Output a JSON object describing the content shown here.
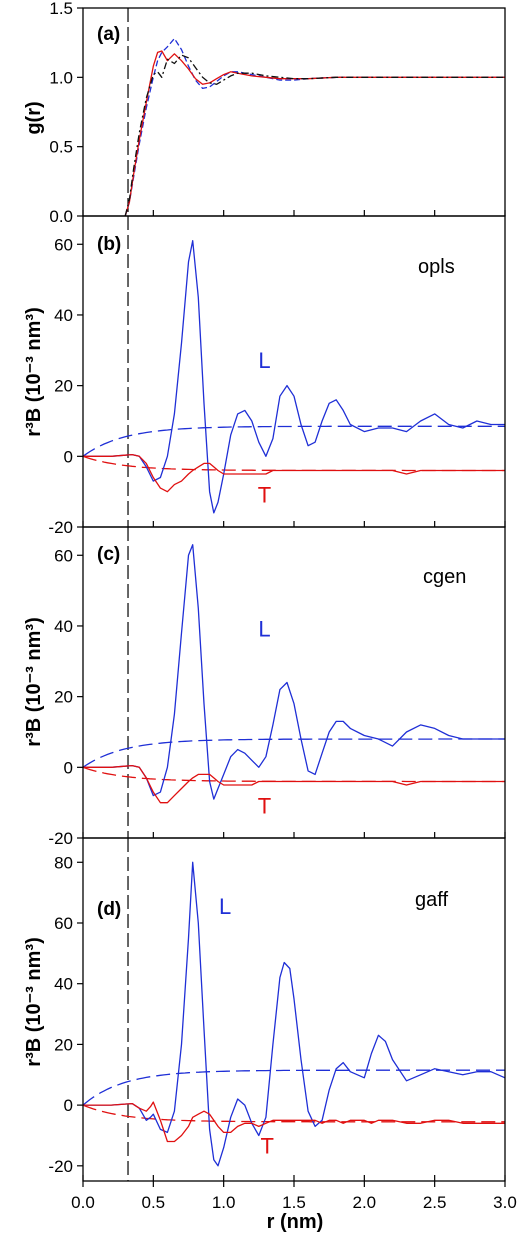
{
  "chart_data": [
    {
      "type": "line",
      "panel_label": "(a)",
      "model_label": "",
      "ylabel": "g(r)",
      "ylim": [
        0,
        1.5
      ],
      "yticks": [
        0.0,
        0.5,
        1.0,
        1.5
      ],
      "xlim": [
        0,
        3.0
      ],
      "x": [
        0.3,
        0.33,
        0.36,
        0.4,
        0.45,
        0.5,
        0.53,
        0.56,
        0.6,
        0.65,
        0.7,
        0.75,
        0.8,
        0.85,
        0.9,
        0.95,
        1.0,
        1.05,
        1.1,
        1.2,
        1.3,
        1.4,
        1.5,
        1.6,
        1.8,
        2.0,
        2.5,
        3.0
      ],
      "series": [
        {
          "color": "#1f2fd6",
          "dash": "6 3",
          "values": [
            0,
            0.1,
            0.28,
            0.52,
            0.78,
            1.0,
            1.12,
            1.18,
            1.22,
            1.28,
            1.2,
            1.08,
            0.98,
            0.92,
            0.93,
            0.97,
            1.01,
            1.04,
            1.04,
            1.02,
            1.0,
            0.98,
            0.98,
            0.99,
            1.0,
            1.0,
            1.0,
            1.0
          ]
        },
        {
          "color": "#e01010",
          "dash": "",
          "values": [
            0,
            0.1,
            0.3,
            0.55,
            0.82,
            1.08,
            1.18,
            1.19,
            1.12,
            1.17,
            1.12,
            1.06,
            0.99,
            0.95,
            0.96,
            0.99,
            1.02,
            1.04,
            1.03,
            1.01,
            1.0,
            0.99,
            0.99,
            0.99,
            1.0,
            1.0,
            1.0,
            1.0
          ]
        },
        {
          "color": "#111111",
          "dash": "7 3 2 3",
          "values": [
            0,
            0.12,
            0.34,
            0.6,
            0.85,
            1.02,
            1.04,
            1.0,
            1.13,
            1.1,
            1.16,
            1.14,
            1.07,
            1.0,
            0.96,
            0.95,
            0.98,
            1.01,
            1.03,
            1.03,
            1.01,
            1.0,
            0.99,
            0.99,
            1.0,
            1.0,
            1.0,
            1.0
          ]
        }
      ],
      "vline_x": 0.32
    },
    {
      "type": "line",
      "panel_label": "(b)",
      "model_label": "opls",
      "ylabel": "r³B (10⁻³ nm³)",
      "ylim": [
        -20,
        68
      ],
      "yticks": [
        -20,
        0,
        20,
        40,
        60
      ],
      "xlim": [
        0,
        3.0
      ],
      "series_labels": [
        {
          "text": "L",
          "x": 1.29,
          "y": 25,
          "color": "#1f2fd6"
        },
        {
          "text": "T",
          "x": 1.29,
          "y": -13,
          "color": "#e01010"
        }
      ],
      "x": [
        0,
        0.2,
        0.35,
        0.4,
        0.45,
        0.5,
        0.55,
        0.6,
        0.65,
        0.7,
        0.75,
        0.78,
        0.82,
        0.86,
        0.9,
        0.93,
        0.96,
        1.0,
        1.05,
        1.1,
        1.15,
        1.2,
        1.25,
        1.3,
        1.35,
        1.4,
        1.45,
        1.5,
        1.55,
        1.6,
        1.65,
        1.7,
        1.75,
        1.8,
        1.85,
        1.9,
        2.0,
        2.1,
        2.2,
        2.3,
        2.4,
        2.5,
        2.6,
        2.7,
        2.8,
        2.9,
        3.0
      ],
      "series": [
        {
          "color": "#1f2fd6",
          "dash": "",
          "values": [
            0,
            0,
            0.5,
            0,
            -3,
            -7,
            -6,
            0,
            12,
            32,
            55,
            61,
            45,
            15,
            -10,
            -16,
            -13,
            -5,
            6,
            12,
            13,
            10,
            4,
            0,
            5,
            17,
            20,
            17,
            9,
            3,
            4,
            10,
            15,
            16,
            13,
            9,
            7,
            8,
            8,
            7,
            10,
            12,
            9,
            8,
            10,
            9,
            9
          ]
        },
        {
          "color": "#e01010",
          "dash": "",
          "values": [
            0,
            0,
            0.5,
            0,
            -2,
            -6,
            -9,
            -10,
            -8,
            -7,
            -5,
            -4,
            -3,
            -2,
            -2,
            -3,
            -4,
            -5,
            -5,
            -5,
            -5,
            -5,
            -5,
            -5,
            -4,
            -4,
            -4,
            -4,
            -4,
            -4,
            -4,
            -4,
            -4,
            -4,
            -4,
            -4,
            -4,
            -4,
            -4,
            -5,
            -4,
            -4,
            -4,
            -4,
            -4,
            -4,
            -4
          ]
        }
      ],
      "fits": [
        {
          "color": "#1f2fd6",
          "plateau": 8.5,
          "k": 3.5,
          "sign": 1
        },
        {
          "color": "#e01010",
          "plateau": -4,
          "k": 3.5,
          "sign": -1
        }
      ],
      "vline_x": 0.32
    },
    {
      "type": "line",
      "panel_label": "(c)",
      "model_label": "cgen",
      "ylabel": "r³B (10⁻³ nm³)",
      "ylim": [
        -20,
        68
      ],
      "yticks": [
        -20,
        0,
        20,
        40,
        60
      ],
      "xlim": [
        0,
        3.0
      ],
      "series_labels": [
        {
          "text": "L",
          "x": 1.29,
          "y": 37,
          "color": "#1f2fd6"
        },
        {
          "text": "T",
          "x": 1.29,
          "y": -13,
          "color": "#e01010"
        }
      ],
      "x": [
        0,
        0.2,
        0.35,
        0.4,
        0.45,
        0.5,
        0.55,
        0.6,
        0.65,
        0.7,
        0.75,
        0.78,
        0.82,
        0.86,
        0.9,
        0.93,
        0.96,
        1.0,
        1.05,
        1.1,
        1.15,
        1.2,
        1.25,
        1.3,
        1.35,
        1.4,
        1.45,
        1.5,
        1.55,
        1.6,
        1.65,
        1.7,
        1.75,
        1.8,
        1.85,
        1.9,
        2.0,
        2.1,
        2.2,
        2.3,
        2.4,
        2.5,
        2.6,
        2.7,
        2.8,
        2.9,
        3.0
      ],
      "series": [
        {
          "color": "#1f2fd6",
          "dash": "",
          "values": [
            0,
            0,
            0.5,
            0,
            -3,
            -8,
            -7,
            0,
            15,
            38,
            60,
            63,
            45,
            18,
            -4,
            -9,
            -6,
            -2,
            3,
            5,
            4,
            2,
            0,
            3,
            12,
            22,
            24,
            18,
            8,
            -1,
            -2,
            4,
            10,
            13,
            13,
            11,
            9,
            8,
            6,
            10,
            12,
            11,
            9,
            8,
            8,
            8,
            8
          ]
        },
        {
          "color": "#e01010",
          "dash": "",
          "values": [
            0,
            0,
            0.5,
            0,
            -3,
            -7,
            -10,
            -10,
            -8,
            -6,
            -4,
            -3,
            -2,
            -2,
            -2,
            -3,
            -4,
            -5,
            -5,
            -5,
            -5,
            -5,
            -4,
            -4,
            -4,
            -4,
            -4,
            -4,
            -4,
            -4,
            -4,
            -4,
            -4,
            -4,
            -4,
            -4,
            -4,
            -4,
            -4,
            -5,
            -4,
            -4,
            -4,
            -4,
            -4,
            -4,
            -4
          ]
        }
      ],
      "fits": [
        {
          "color": "#1f2fd6",
          "plateau": 8,
          "k": 3.5,
          "sign": 1
        },
        {
          "color": "#e01010",
          "plateau": -4,
          "k": 3.5,
          "sign": -1
        }
      ],
      "vline_x": 0.32
    },
    {
      "type": "line",
      "panel_label": "(d)",
      "model_label": "gaff",
      "ylabel": "r³B (10⁻³ nm³)",
      "ylim": [
        -25,
        88
      ],
      "yticks": [
        -20,
        0,
        20,
        40,
        60,
        80
      ],
      "xlim": [
        0,
        3.0
      ],
      "xticks": [
        0.0,
        0.5,
        1.0,
        1.5,
        2.0,
        2.5,
        3.0
      ],
      "xlabel": "r (nm)",
      "series_labels": [
        {
          "text": "L",
          "x": 1.01,
          "y": 63,
          "color": "#1f2fd6"
        },
        {
          "text": "T",
          "x": 1.31,
          "y": -16,
          "color": "#e01010"
        }
      ],
      "x": [
        0,
        0.2,
        0.35,
        0.4,
        0.45,
        0.48,
        0.5,
        0.55,
        0.6,
        0.65,
        0.7,
        0.75,
        0.78,
        0.82,
        0.86,
        0.9,
        0.93,
        0.96,
        1.0,
        1.05,
        1.1,
        1.15,
        1.2,
        1.25,
        1.3,
        1.35,
        1.4,
        1.43,
        1.47,
        1.5,
        1.55,
        1.6,
        1.65,
        1.7,
        1.75,
        1.8,
        1.85,
        1.9,
        2.0,
        2.05,
        2.1,
        2.15,
        2.2,
        2.3,
        2.4,
        2.5,
        2.6,
        2.7,
        2.8,
        2.9,
        3.0
      ],
      "series": [
        {
          "color": "#1f2fd6",
          "dash": "",
          "values": [
            0,
            0,
            0.5,
            -1,
            -5,
            -4,
            -3,
            -8,
            -9,
            -2,
            20,
            55,
            80,
            60,
            25,
            -8,
            -18,
            -20,
            -14,
            -4,
            2,
            0,
            -6,
            -10,
            -4,
            20,
            42,
            47,
            45,
            35,
            15,
            -2,
            -7,
            -5,
            5,
            12,
            14,
            11,
            9,
            17,
            23,
            21,
            15,
            8,
            10,
            12,
            11,
            10,
            11,
            11,
            9
          ]
        },
        {
          "color": "#e01010",
          "dash": "",
          "values": [
            0,
            0,
            0.5,
            -1,
            -2,
            -0.5,
            1,
            -5,
            -12,
            -12,
            -10,
            -7,
            -4,
            -3,
            -2,
            -3,
            -5,
            -7,
            -9,
            -9,
            -7,
            -6,
            -6,
            -7,
            -6,
            -5,
            -5,
            -5,
            -5,
            -5,
            -5,
            -5,
            -5,
            -6,
            -5,
            -5,
            -6,
            -5,
            -5,
            -6,
            -5,
            -5,
            -5,
            -6,
            -6,
            -5,
            -5,
            -6,
            -6,
            -6,
            -6
          ]
        }
      ],
      "fits": [
        {
          "color": "#1f2fd6",
          "plateau": 11.5,
          "k": 3.5,
          "sign": 1
        },
        {
          "color": "#e01010",
          "plateau": -5.5,
          "k": 3.5,
          "sign": -1
        }
      ],
      "vline_x": 0.32
    }
  ]
}
